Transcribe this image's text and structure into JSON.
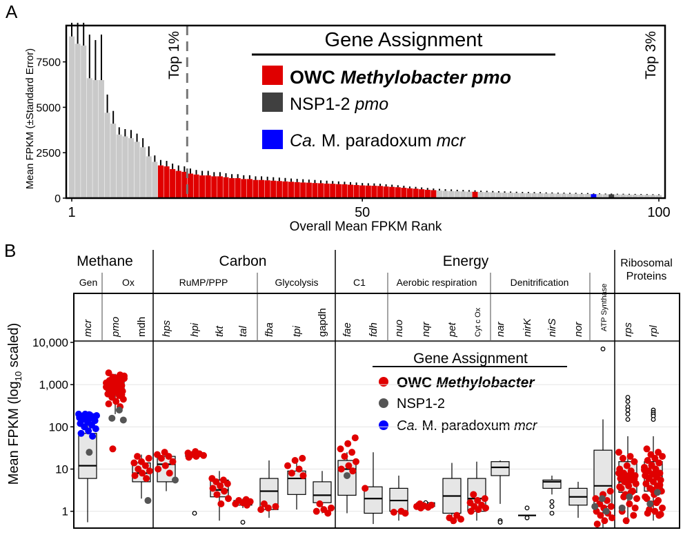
{
  "panel_a": {
    "letter": "A",
    "ylabel": "Mean FPKM (±Standard Error)",
    "xlabel": "Overall Mean FPKM Rank",
    "top1_label": "Top 1%",
    "top3_label": "Top 3%",
    "legend": {
      "title": "Gene Assignment",
      "items": [
        {
          "label_plain": "OWC ",
          "label_italic": "Methylobacter pmo",
          "color": "#e00000",
          "bold": true
        },
        {
          "label_plain": "NSP1-2 ",
          "label_italic": "pmo",
          "color": "#404040",
          "bold": false
        },
        {
          "label_plain": " M. paradoxum ",
          "label_italic_pre": "Ca.",
          "label_italic": "mcr",
          "color": "#0000ff",
          "bold": false
        }
      ]
    }
  },
  "panel_b": {
    "letter": "B",
    "ylabel_pre": "Mean FPKM (log",
    "ylabel_sub": "10",
    "ylabel_post": " scaled)",
    "groups": [
      {
        "label": "Methane",
        "subs": [
          "Gen",
          "Ox"
        ]
      },
      {
        "label": "Carbon",
        "subs": [
          "RuMP/PPP",
          "Glycolysis"
        ]
      },
      {
        "label": "Energy",
        "subs": [
          "C1",
          "Aerobic respiration",
          "Denitrification"
        ]
      },
      {
        "label": "Ribosomal Proteins",
        "subs": []
      }
    ],
    "atp_label": "ATP Synthase",
    "genes": [
      "mcr",
      "pmo",
      "mdh",
      "hps",
      "hpi",
      "tkt",
      "tal",
      "fba",
      "tpi",
      "gapdh",
      "fae",
      "fdh",
      "nuo",
      "nqr",
      "pet",
      "Cyt c Ox",
      "nar",
      "nirK",
      "nirS",
      "nor",
      "rps",
      "rpl"
    ],
    "legend": {
      "title": "Gene Assignment",
      "items": [
        {
          "label_plain": "OWC ",
          "label_italic": "Methylobacter",
          "color": "#e00000",
          "bold": true
        },
        {
          "label_plain": "NSP1-2",
          "label_italic": "",
          "color": "#555555",
          "bold": false
        },
        {
          "label_italic_pre": "Ca.",
          "label_plain": " M. paradoxum ",
          "label_italic": "mcr",
          "color": "#0000ff",
          "bold": false
        }
      ]
    }
  },
  "chart_data": [
    {
      "type": "bar",
      "title": "Gene Assignment",
      "xlabel": "Overall Mean FPKM Rank",
      "ylabel": "Mean FPKM (±Standard Error)",
      "xlim": [
        1,
        100
      ],
      "ylim": [
        0,
        9500
      ],
      "x_ticks": [
        1,
        50,
        100
      ],
      "y_ticks": [
        0,
        2500,
        5000,
        7500
      ],
      "annotations": [
        "Top 1%",
        "Top 3%"
      ],
      "top1_rank": 20,
      "series": [
        {
          "name": "OWC Methylobacter pmo",
          "color": "#e00000",
          "ranks": [
            16,
            17,
            18,
            19,
            20,
            21,
            22,
            23,
            24,
            25,
            26,
            27,
            28,
            29,
            30,
            31,
            32,
            33,
            34,
            35,
            36,
            37,
            38,
            39,
            40,
            41,
            42,
            43,
            44,
            45,
            46,
            47,
            48,
            49,
            50,
            51,
            52,
            53,
            54,
            55,
            56,
            57,
            58,
            59,
            60,
            61,
            62,
            69
          ]
        },
        {
          "name": "NSP1-2 pmo",
          "color": "#404040",
          "ranks": [
            92
          ]
        },
        {
          "name": "Ca. M. paradoxum mcr",
          "color": "#0000ff",
          "ranks": [
            89
          ]
        }
      ],
      "ranks": [
        1,
        2,
        3,
        4,
        5,
        6,
        7,
        8,
        9,
        10,
        11,
        12,
        13,
        14,
        15,
        16,
        17,
        18,
        19,
        20,
        21,
        22,
        23,
        24,
        25,
        26,
        27,
        28,
        29,
        30,
        31,
        32,
        33,
        34,
        35,
        36,
        37,
        38,
        39,
        40,
        41,
        42,
        43,
        44,
        45,
        46,
        47,
        48,
        49,
        50,
        51,
        52,
        53,
        54,
        55,
        56,
        57,
        58,
        59,
        60,
        61,
        62,
        63,
        64,
        65,
        66,
        67,
        68,
        69,
        70,
        71,
        72,
        73,
        74,
        75,
        76,
        77,
        78,
        79,
        80,
        81,
        82,
        83,
        84,
        85,
        86,
        87,
        88,
        89,
        90,
        91,
        92,
        93,
        94,
        95,
        96,
        97,
        98,
        99,
        100
      ],
      "values": [
        8900,
        8500,
        8400,
        6600,
        6500,
        6500,
        4700,
        4100,
        3500,
        3400,
        3300,
        3100,
        2800,
        2300,
        2000,
        1800,
        1750,
        1600,
        1500,
        1450,
        1350,
        1300,
        1250,
        1250,
        1200,
        1200,
        1150,
        1100,
        1100,
        1050,
        1050,
        1000,
        1000,
        980,
        960,
        940,
        920,
        900,
        880,
        860,
        850,
        830,
        820,
        800,
        790,
        770,
        760,
        740,
        720,
        700,
        690,
        680,
        670,
        640,
        620,
        600,
        570,
        540,
        520,
        490,
        460,
        440,
        420,
        400,
        390,
        380,
        370,
        360,
        350,
        340,
        330,
        320,
        310,
        300,
        300,
        290,
        280,
        280,
        270,
        270,
        260,
        260,
        250,
        250,
        240,
        240,
        230,
        230,
        220,
        220,
        210,
        210,
        200,
        200,
        195,
        190,
        185,
        180,
        175,
        170
      ],
      "errors": [
        1900,
        1400,
        3000,
        2400,
        2200,
        2500,
        1000,
        700,
        400,
        400,
        450,
        450,
        500,
        550,
        350,
        300,
        300,
        300,
        300,
        300,
        280,
        250,
        250,
        250,
        230,
        230,
        220,
        220,
        220,
        210,
        210,
        200,
        200,
        200,
        190,
        190,
        190,
        180,
        180,
        180,
        170,
        170,
        160,
        160,
        150,
        150,
        140,
        140,
        140,
        130,
        130,
        130,
        120,
        120,
        120,
        110,
        110,
        100,
        100,
        100,
        100,
        90,
        90,
        90,
        90,
        80,
        80,
        80,
        80,
        70,
        70,
        70,
        70,
        70,
        60,
        60,
        60,
        60,
        60,
        60,
        50,
        50,
        50,
        50,
        50,
        50,
        50,
        50,
        40,
        40,
        40,
        40,
        40,
        40,
        40,
        40,
        40,
        40,
        40,
        40
      ]
    },
    {
      "type": "box",
      "ylabel": "Mean FPKM (log10 scaled)",
      "yscale": "log10",
      "ylim": [
        0.4,
        10000
      ],
      "y_ticks": [
        1,
        10,
        100,
        1000,
        10000
      ],
      "y_tick_labels": [
        "1",
        "10",
        "100",
        "1,000",
        "10,000"
      ],
      "categories": [
        "mcr",
        "pmo",
        "mdh",
        "hps",
        "hpi",
        "tkt",
        "tal",
        "fba",
        "tpi",
        "gapdh",
        "fae",
        "fdh",
        "nuo",
        "nqr",
        "pet",
        "Cyt c Ox",
        "nar",
        "nirK",
        "nirS",
        "nor",
        "ATP Synthase",
        "rps",
        "rpl"
      ],
      "boxes": [
        {
          "q1": 6,
          "med": 12,
          "q3": 70,
          "lo": 0.55,
          "hi": 110
        },
        {
          "q1": 600,
          "med": 900,
          "q3": 1200,
          "lo": 200,
          "hi": 1800
        },
        {
          "q1": 5,
          "med": 8,
          "q3": 14,
          "lo": 2,
          "hi": 22
        },
        {
          "q1": 5,
          "med": 13,
          "q3": 20,
          "lo": 3,
          "hi": 25
        },
        {
          "q1": 20,
          "med": 22,
          "q3": 24,
          "lo": 18,
          "hi": 26
        },
        {
          "q1": 2.2,
          "med": 3.2,
          "q3": 5.5,
          "lo": 0.6,
          "hi": 9
        },
        {
          "q1": 1.4,
          "med": 1.6,
          "q3": 1.8,
          "lo": 1.2,
          "hi": 2
        },
        {
          "q1": 1.1,
          "med": 3,
          "q3": 6,
          "lo": 0.7,
          "hi": 16
        },
        {
          "q1": 2.5,
          "med": 6,
          "q3": 9,
          "lo": 1.1,
          "hi": 14
        },
        {
          "q1": 1.6,
          "med": 2.4,
          "q3": 5,
          "lo": 0.9,
          "hi": 9
        },
        {
          "q1": 2.4,
          "med": 10,
          "q3": 16,
          "lo": 0.9,
          "hi": 25
        },
        {
          "q1": 0.9,
          "med": 2,
          "q3": 3.8,
          "lo": 0.5,
          "hi": 25
        },
        {
          "q1": 1,
          "med": 1.8,
          "q3": 3.5,
          "lo": 0.6,
          "hi": 7
        },
        {
          "q1": 1.3,
          "med": 1.4,
          "q3": 1.6,
          "lo": 1.2,
          "hi": 1.8
        },
        {
          "q1": 0.9,
          "med": 2.3,
          "q3": 6,
          "lo": 0.5,
          "hi": 14
        },
        {
          "q1": 1,
          "med": 2,
          "q3": 6,
          "lo": 0.6,
          "hi": 15
        },
        {
          "q1": 7,
          "med": 11,
          "q3": 15,
          "lo": 1.5,
          "hi": 16
        },
        {
          "q1": 0.8,
          "med": 0.8,
          "q3": 0.8,
          "lo": 0.8,
          "hi": 0.8
        },
        {
          "q1": 3.5,
          "med": 5,
          "q3": 5.5,
          "lo": 2.5,
          "hi": 7
        },
        {
          "q1": 1.4,
          "med": 2.2,
          "q3": 3.5,
          "lo": 0.7,
          "hi": 5
        },
        {
          "q1": 1.3,
          "med": 4,
          "q3": 28,
          "lo": 0.4,
          "hi": 150
        },
        {
          "q1": 2.8,
          "med": 5,
          "q3": 15,
          "lo": 0.5,
          "hi": 60
        },
        {
          "q1": 3,
          "med": 7,
          "q3": 15,
          "lo": 0.6,
          "hi": 60
        }
      ],
      "points": [
        {
          "cat": "mcr",
          "color": "#0000ff",
          "values": [
            200,
            190,
            180,
            175,
            170,
            165,
            160,
            150,
            140,
            130,
            120,
            110,
            100,
            90,
            80,
            70,
            60,
            200,
            185,
            195
          ]
        },
        {
          "cat": "mcr",
          "color": "#555555",
          "values": [
            25
          ]
        },
        {
          "cat": "pmo",
          "color": "#e00000",
          "values": [
            1900,
            1700,
            1500,
            1400,
            1300,
            1250,
            1200,
            1150,
            1100,
            1050,
            1000,
            950,
            900,
            850,
            800,
            750,
            700,
            650,
            600,
            550,
            500,
            450,
            400,
            350,
            300,
            30,
            1600,
            1450,
            1250,
            1080,
            980,
            880,
            780,
            680,
            580
          ]
        },
        {
          "cat": "pmo",
          "color": "#555555",
          "values": [
            250,
            160,
            145
          ]
        },
        {
          "cat": "mdh",
          "color": "#e00000",
          "values": [
            20,
            18,
            15,
            14,
            12,
            10,
            9,
            8,
            7,
            6
          ]
        },
        {
          "cat": "mdh",
          "color": "#555555",
          "values": [
            1.8
          ]
        },
        {
          "cat": "hps",
          "color": "#e00000",
          "values": [
            25,
            22,
            20,
            18,
            15,
            12,
            10,
            8
          ]
        },
        {
          "cat": "hps",
          "color": "#555555",
          "values": [
            5.5
          ]
        },
        {
          "cat": "hpi",
          "color": "#e00000",
          "values": [
            26,
            24,
            23,
            22,
            21,
            20,
            19
          ]
        },
        {
          "cat": "tkt",
          "color": "#e00000",
          "values": [
            6,
            5.5,
            5,
            4.5,
            4,
            3.5,
            3,
            2.5,
            2,
            1.5
          ]
        },
        {
          "cat": "tal",
          "color": "#e00000",
          "values": [
            1.9,
            1.8,
            1.7,
            1.6,
            1.5,
            1.4
          ]
        },
        {
          "cat": "fba",
          "color": "#e00000",
          "values": [
            1.5,
            1.3,
            1.2,
            1.1
          ]
        },
        {
          "cat": "tpi",
          "color": "#e00000",
          "values": [
            18,
            16,
            12,
            10,
            8,
            7
          ]
        },
        {
          "cat": "gapdh",
          "color": "#e00000",
          "values": [
            1.5,
            1.2,
            1.1,
            1.0,
            0.9
          ]
        },
        {
          "cat": "fae",
          "color": "#e00000",
          "values": [
            55,
            40,
            30,
            25,
            20,
            15,
            12,
            10,
            9
          ]
        },
        {
          "cat": "fae",
          "color": "#555555",
          "values": [
            7
          ]
        },
        {
          "cat": "fdh",
          "color": "#e00000",
          "values": [
            3.5
          ]
        },
        {
          "cat": "nuo",
          "color": "#e00000",
          "values": [
            1,
            0.95,
            0.9
          ]
        },
        {
          "cat": "nqr",
          "color": "#e00000",
          "values": [
            1.5,
            1.4,
            1.35,
            1.3,
            1.25,
            1.2
          ]
        },
        {
          "cat": "pet",
          "color": "#e00000",
          "values": [
            0.8,
            0.7,
            0.65,
            0.6
          ]
        },
        {
          "cat": "Cyt c Ox",
          "color": "#e00000",
          "values": [
            2.5,
            2,
            1.8,
            1.6,
            1.4,
            1.3,
            1.2,
            1.1,
            1
          ]
        },
        {
          "cat": "ATP Synthase",
          "color": "#e00000",
          "values": [
            3,
            2.5,
            2,
            1.8,
            1.5,
            1.3,
            1.2,
            1,
            0.9,
            0.8,
            0.7,
            0.6,
            0.5
          ]
        },
        {
          "cat": "ATP Synthase",
          "color": "#555555",
          "values": [
            2,
            1.3,
            1
          ]
        },
        {
          "cat": "rps",
          "color": "#e00000",
          "values": [
            25,
            20,
            18,
            15,
            12,
            10,
            9,
            8,
            7,
            6.5,
            6,
            5.5,
            5,
            4.5,
            4,
            3.5,
            3,
            2.5,
            2,
            1.5,
            1,
            0.8,
            0.6,
            8,
            7.5,
            6.8,
            5.8,
            4.8,
            3.8,
            2.8,
            2.2,
            1.2
          ]
        },
        {
          "cat": "rps",
          "color": "#555555",
          "values": [
            2.2,
            1.2
          ]
        },
        {
          "cat": "rpl",
          "color": "#e00000",
          "values": [
            30,
            25,
            22,
            20,
            18,
            16,
            14,
            12,
            11,
            10,
            9,
            8,
            7.5,
            7,
            6.5,
            6,
            5.5,
            5,
            4.5,
            4,
            3.5,
            3,
            2.5,
            2,
            1.8,
            1.5,
            1.2,
            1,
            0.9,
            0.8,
            12.5,
            9.5,
            8.5,
            6.2,
            4.2,
            3.2,
            2.2,
            1.6,
            1.1,
            0.85
          ]
        },
        {
          "cat": "rpl",
          "color": "#555555",
          "values": [
            2.8,
            1.5
          ]
        }
      ],
      "outliers": [
        {
          "cat": "hpi",
          "values": [
            0.9
          ]
        },
        {
          "cat": "tal",
          "values": [
            0.55
          ]
        },
        {
          "cat": "nqr",
          "values": [
            1.6
          ]
        },
        {
          "cat": "nar",
          "values": [
            0.6,
            0.55
          ]
        },
        {
          "cat": "nirK",
          "values": [
            1.2,
            0.7
          ]
        },
        {
          "cat": "nirS",
          "values": [
            1.7,
            1.3,
            0.9
          ]
        },
        {
          "cat": "ATP Synthase",
          "values": [
            7000
          ]
        },
        {
          "cat": "rps",
          "values": [
            500,
            400,
            300,
            250,
            200,
            150
          ]
        },
        {
          "cat": "rpl",
          "values": [
            250,
            220,
            200,
            180,
            150
          ]
        }
      ]
    }
  ]
}
